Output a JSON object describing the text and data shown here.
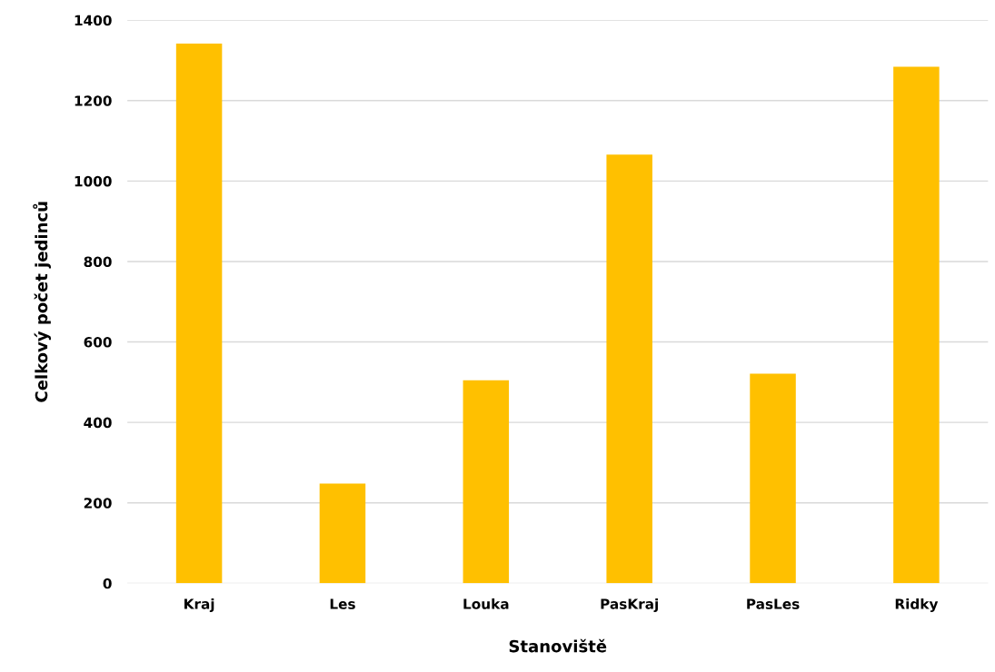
{
  "chart_data": {
    "type": "bar",
    "xlabel": "Stanoviště",
    "ylabel": "Celkový počet jedinců",
    "categories": [
      "Kraj",
      "Les",
      "Louka",
      "PasKraj",
      "PasLes",
      "Ridky"
    ],
    "values": [
      1342,
      248,
      505,
      1066,
      521,
      1284
    ],
    "color": "#ffc000",
    "ylim": [
      0,
      1400
    ],
    "yticks": [
      0,
      200,
      400,
      600,
      800,
      1000,
      1200,
      1400
    ],
    "grid": "y"
  }
}
